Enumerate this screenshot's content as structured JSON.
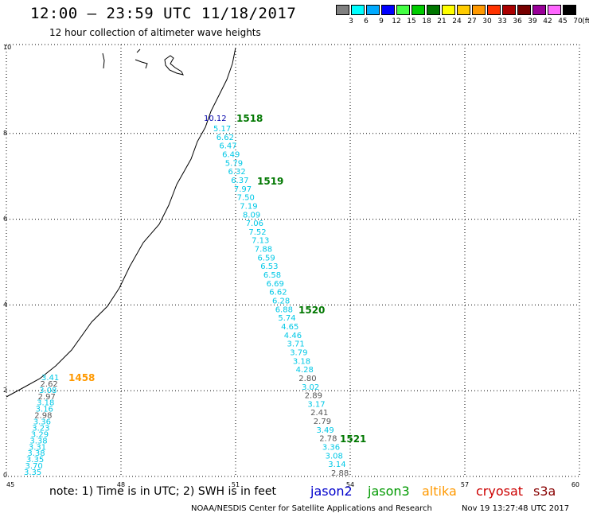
{
  "title": "12:00 – 23:59 UTC 11/18/2017",
  "subtitle": "12 hour collection of altimeter wave heights",
  "color_scale": {
    "labels": [
      "3",
      "6",
      "9",
      "12",
      "15",
      "18",
      "21",
      "24",
      "27",
      "30",
      "33",
      "36",
      "39",
      "42",
      "45",
      "70"
    ],
    "unit": "(ft)",
    "colors": [
      "#808080",
      "#00ffff",
      "#00aaff",
      "#0000ff",
      "#44ff44",
      "#00cc00",
      "#007700",
      "#ffff00",
      "#ffcc00",
      "#ff9900",
      "#ff3300",
      "#aa0000",
      "#770000",
      "#990099",
      "#ff66ff",
      "#000000"
    ]
  },
  "axes": {
    "x_ticks": [
      "45",
      "48",
      "51",
      "54",
      "57",
      "60"
    ],
    "y_ticks": [
      "0",
      "2",
      "4",
      "6",
      "8",
      "10"
    ]
  },
  "passes": [
    {
      "label": "1518",
      "color": "#007700"
    },
    {
      "label": "1519",
      "color": "#007700"
    },
    {
      "label": "1520",
      "color": "#007700"
    },
    {
      "label": "1521",
      "color": "#007700"
    },
    {
      "label": "1458",
      "color": "#ff9900"
    }
  ],
  "track_main": {
    "first_value": "10.12",
    "first_color": "#0000aa",
    "values": [
      "5.17",
      "6.62",
      "6.47",
      "6.49",
      "5.79",
      "6.32",
      "6.37",
      "7.97",
      "7.50",
      "7.19",
      "8.09",
      "7.06",
      "7.52",
      "7.13",
      "7.88",
      "6.59",
      "6.53",
      "6.58",
      "6.69",
      "6.62",
      "6.28",
      "6.88",
      "5.74",
      "4.65",
      "4.46",
      "3.71",
      "3.79",
      "3.18",
      "4.28",
      "2.80",
      "3.02",
      "2.89",
      "3.17",
      "2.41",
      "2.79",
      "3.49",
      "2.78",
      "3.36",
      "3.08",
      "3.14",
      "2.88"
    ],
    "colors": [
      "c",
      "c",
      "c",
      "c",
      "c",
      "c",
      "c",
      "c",
      "c",
      "c",
      "c",
      "c",
      "c",
      "c",
      "c",
      "c",
      "c",
      "c",
      "c",
      "c",
      "c",
      "c",
      "c",
      "c",
      "c",
      "c",
      "c",
      "c",
      "c",
      "g",
      "c",
      "g",
      "c",
      "g",
      "g",
      "c",
      "g",
      "c",
      "c",
      "c",
      "g"
    ]
  },
  "track_left": {
    "values": [
      "3.41",
      "2.62",
      "3.08",
      "2.97",
      "3.18",
      "3.16",
      "2.98",
      "3.36",
      "3.23",
      "3.29",
      "3.38",
      "3.31",
      "3.38",
      "3.35",
      "3.70",
      "3.35"
    ],
    "colors": [
      "c",
      "g",
      "c",
      "g",
      "c",
      "c",
      "g",
      "c",
      "c",
      "c",
      "c",
      "c",
      "c",
      "c",
      "c",
      "c"
    ]
  },
  "note": "note: 1) Time is in UTC; 2) SWH is in feet",
  "missions": [
    {
      "name": "jason2",
      "color": "#0000cc"
    },
    {
      "name": "jason3",
      "color": "#009900"
    },
    {
      "name": "altika",
      "color": "#ff9900"
    },
    {
      "name": "cryosat",
      "color": "#cc0000"
    },
    {
      "name": "s3a",
      "color": "#880000"
    }
  ],
  "credit": "NOAA/NESDIS Center for Satellite Applications and Research",
  "timestamp": "Nov 19 13:27:48 UTC 2017"
}
